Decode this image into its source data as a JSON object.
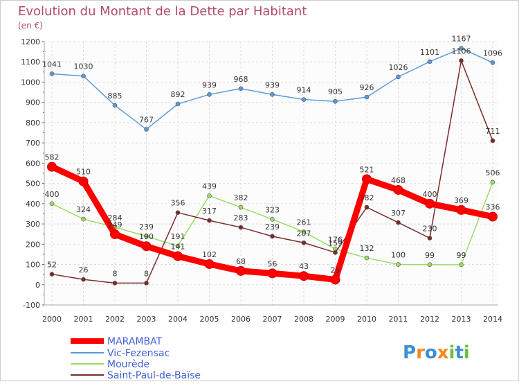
{
  "title": "Evolution du Montant de la Dette par Habitant",
  "unit_label": "(en €)",
  "logo_text": "Proxiti",
  "chart_data": {
    "type": "line",
    "title": "Evolution du Montant de la Dette par Habitant",
    "ylabel": "(en €)",
    "xlabel": "",
    "x": [
      "2000",
      "2001",
      "2002",
      "2003",
      "2004",
      "2005",
      "2006",
      "2007",
      "2008",
      "2009",
      "2010",
      "2011",
      "2012",
      "2013",
      "2014"
    ],
    "ylim": [
      -100,
      1200
    ],
    "yticks": [
      -100,
      0,
      100,
      200,
      300,
      400,
      500,
      600,
      700,
      800,
      900,
      1000,
      1100,
      1200
    ],
    "grid": true,
    "legend_position": "bottom-left",
    "series": [
      {
        "name": "MARAMBAT",
        "color": "#ff0000",
        "emphasis": true,
        "values": [
          582,
          510,
          249,
          190,
          141,
          102,
          68,
          56,
          43,
          25,
          521,
          468,
          400,
          369,
          336
        ],
        "labels": [
          "582",
          "510",
          "249",
          "190",
          "141",
          "102",
          "68",
          "56",
          "43",
          "25",
          "521",
          "468",
          "400",
          "369",
          "336"
        ]
      },
      {
        "name": "Vic-Fezensac",
        "color": "#5b9bd5",
        "emphasis": false,
        "values": [
          1041,
          1030,
          885,
          767,
          892,
          939,
          968,
          939,
          914,
          905,
          926,
          1026,
          1101,
          1167,
          1096
        ],
        "labels": [
          "1041",
          "1030",
          "885",
          "767",
          "892",
          "939",
          "968",
          "939",
          "914",
          "905",
          "926",
          "1026",
          "1101",
          "1167",
          "1096"
        ]
      },
      {
        "name": "Mourède",
        "color": "#99dd66",
        "emphasis": false,
        "values": [
          400,
          324,
          284,
          239,
          191,
          439,
          382,
          323,
          261,
          176,
          132,
          100,
          99,
          99,
          506
        ],
        "labels": [
          "400",
          "324",
          "284",
          "239",
          "191",
          "439",
          "382",
          "323",
          "261",
          "176",
          "132",
          "100",
          "99",
          "99",
          "506"
        ]
      },
      {
        "name": "Saint-Paul-de-Baïse",
        "color": "#7a2a2a",
        "emphasis": false,
        "values": [
          52,
          26,
          8,
          8,
          356,
          317,
          283,
          239,
          207,
          159,
          382,
          307,
          230,
          1106,
          711
        ],
        "labels": [
          "52",
          "26",
          "8",
          "8",
          "356",
          "317",
          "283",
          "239",
          "207",
          "159",
          "382",
          "307",
          "230",
          "1106",
          "711"
        ]
      }
    ]
  }
}
